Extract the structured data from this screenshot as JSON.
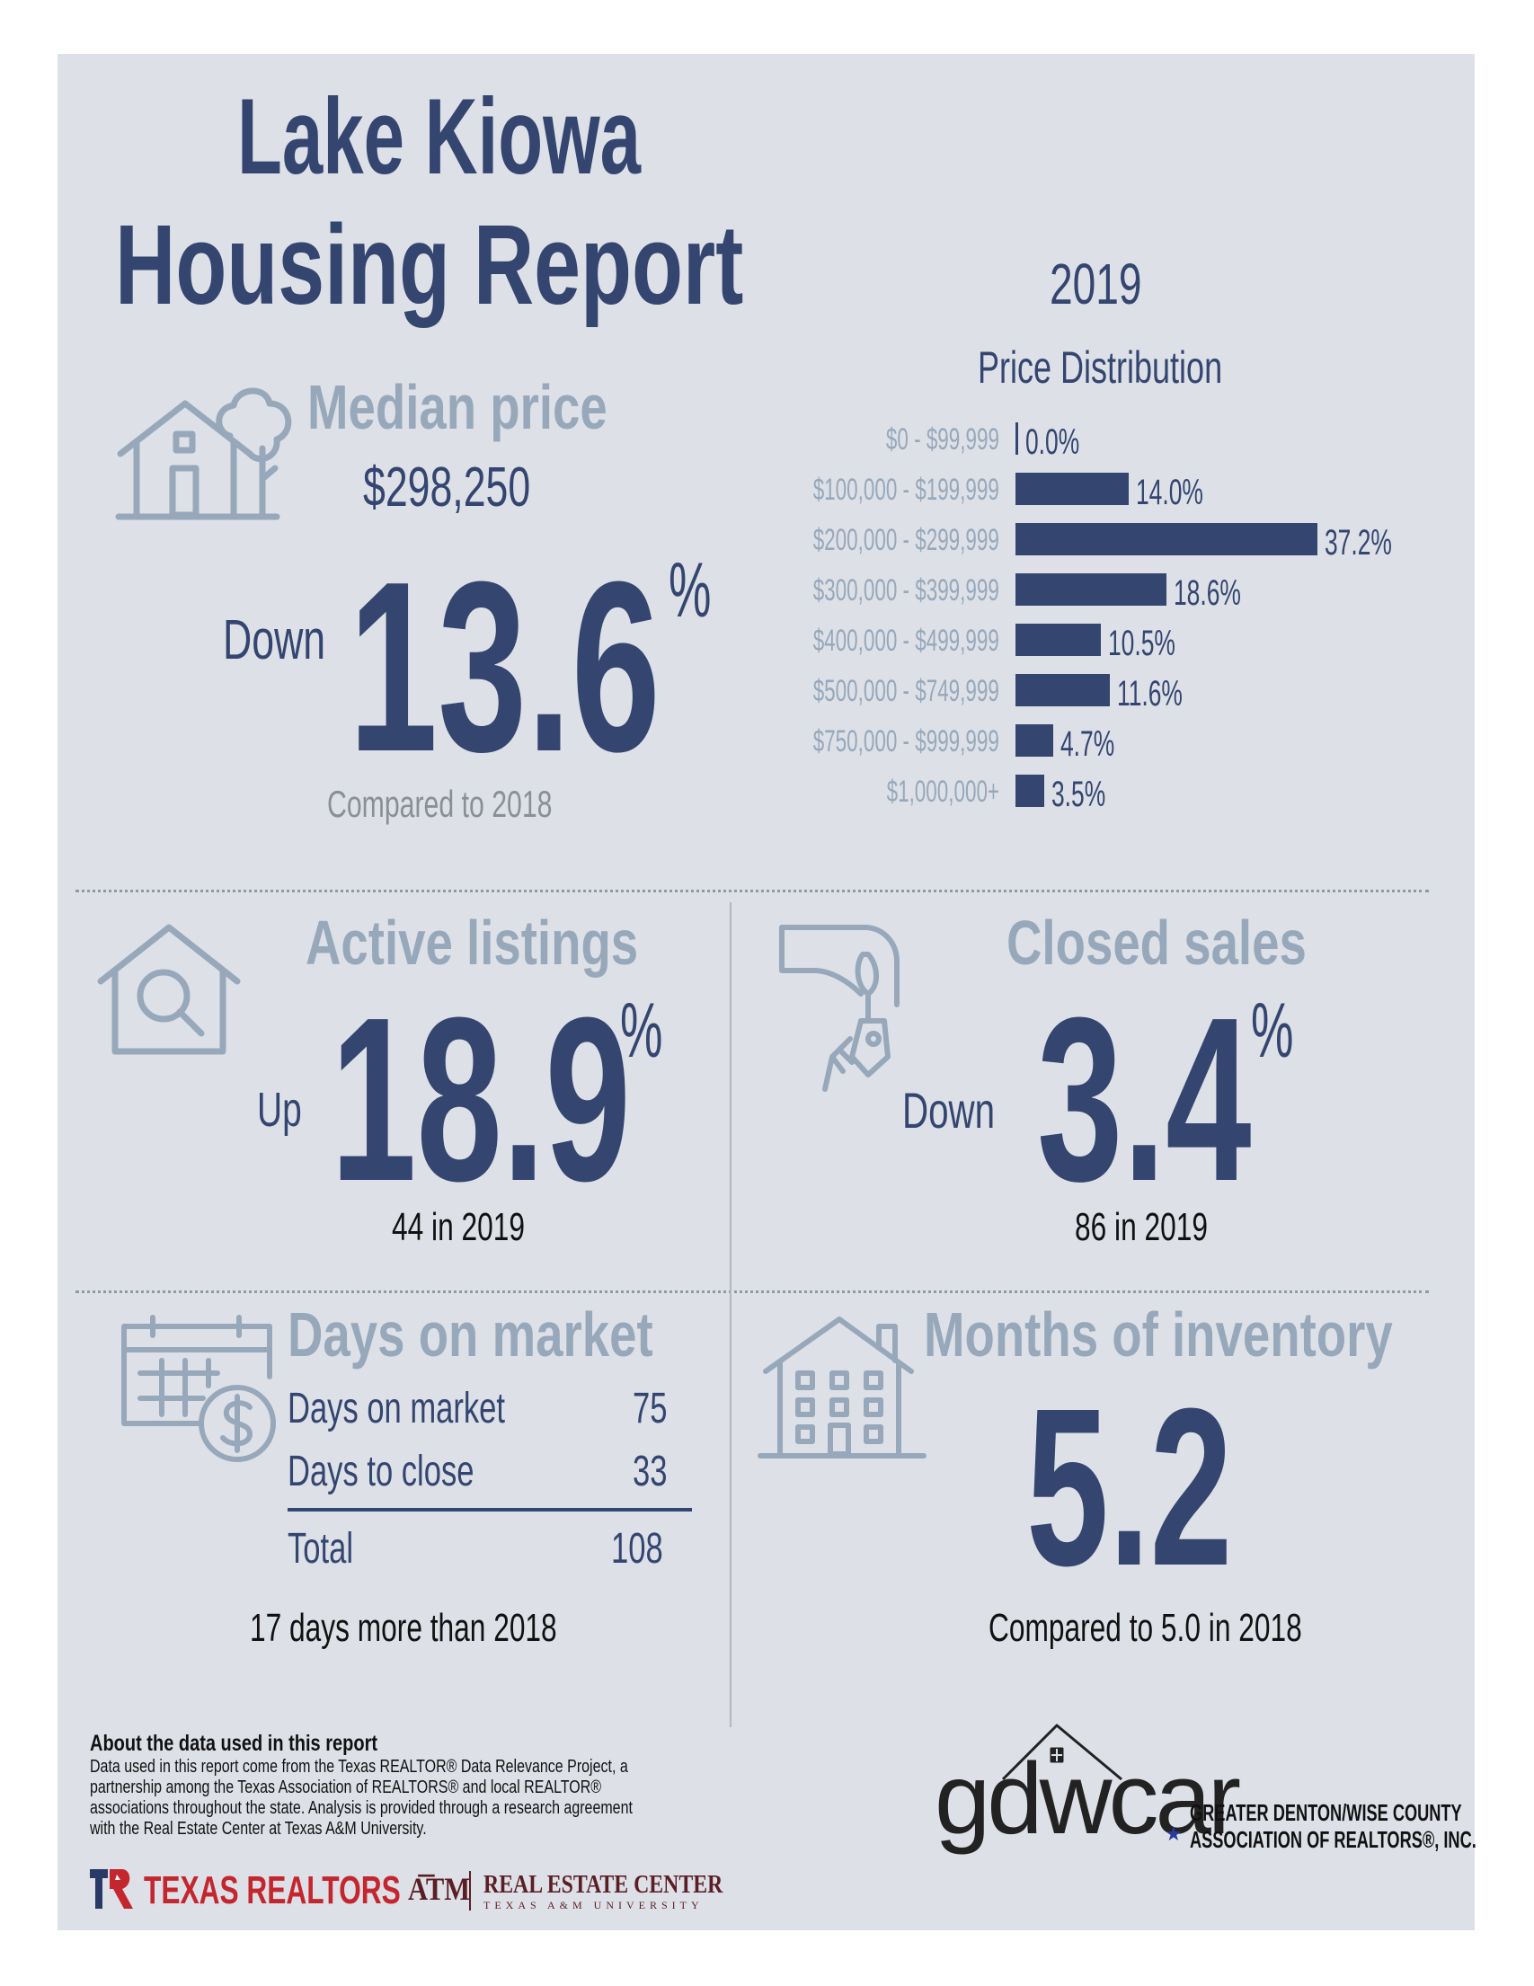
{
  "header": {
    "title_line1": "Lake Kiowa",
    "title_line2": "Housing Report",
    "year": "2019"
  },
  "median_price": {
    "label": "Median price",
    "value": "$298,250",
    "direction": "Down",
    "change": "13.6",
    "unit": "%",
    "note": "Compared to 2018"
  },
  "chart_data": {
    "type": "bar",
    "title": "Price Distribution",
    "orientation": "horizontal",
    "categories": [
      "$0 - $99,999",
      "$100,000 - $199,999",
      "$200,000 - $299,999",
      "$300,000 - $399,999",
      "$400,000 - $499,999",
      "$500,000 - $749,999",
      "$750,000 - $999,999",
      "$1,000,000+"
    ],
    "values": [
      0.0,
      14.0,
      37.2,
      18.6,
      10.5,
      11.6,
      4.7,
      3.5
    ],
    "labels": [
      "0.0%",
      "14.0%",
      "37.2%",
      "18.6%",
      "10.5%",
      "11.6%",
      "4.7%",
      "3.5%"
    ],
    "xlim": [
      0,
      37.2
    ],
    "bar_color": "#344570"
  },
  "active_listings": {
    "label": "Active listings",
    "direction": "Up",
    "change": "18.9",
    "unit": "%",
    "note": "44 in 2019"
  },
  "closed_sales": {
    "label": "Closed sales",
    "direction": "Down",
    "change": "3.4",
    "unit": "%",
    "note": "86 in 2019"
  },
  "days_on_market": {
    "label": "Days on market",
    "rows": [
      {
        "label": "Days on market",
        "value": "75"
      },
      {
        "label": "Days to close",
        "value": "33"
      }
    ],
    "total_label": "Total",
    "total_value": "108",
    "note": "17 days more than 2018"
  },
  "months_inventory": {
    "label": "Months of inventory",
    "value": "5.2",
    "note": "Compared to 5.0 in 2018"
  },
  "footer": {
    "about_title": "About the data used in this report",
    "about_lines": [
      "Data used in this report come from the Texas REALTOR® Data Relevance Project, a",
      "partnership among the Texas Association of REALTORS® and local REALTOR®",
      "associations throughout the state. Analysis is provided through a research agreement",
      "with the Real Estate Center at Texas A&M University."
    ],
    "texas_realtors": "TEXAS REALTORS",
    "rec_title": "REAL ESTATE CENTER",
    "rec_sub": "TEXAS A&M UNIVERSITY",
    "gdwcar_logo": "gdwcar",
    "gdwcar_line1": "GREATER DENTON/WISE COUNTY",
    "gdwcar_line2": "ASSOCIATION OF REALTORS®, INC."
  },
  "colors": {
    "navy": "#344570",
    "light": "#97a8bb",
    "panel": "#dde1e7",
    "red": "#c4262e"
  },
  "icons": [
    "house-tree-icon",
    "house-search-icon",
    "hand-keys-icon",
    "calendar-dollar-icon",
    "building-icon",
    "gdwcar-house-icon"
  ]
}
